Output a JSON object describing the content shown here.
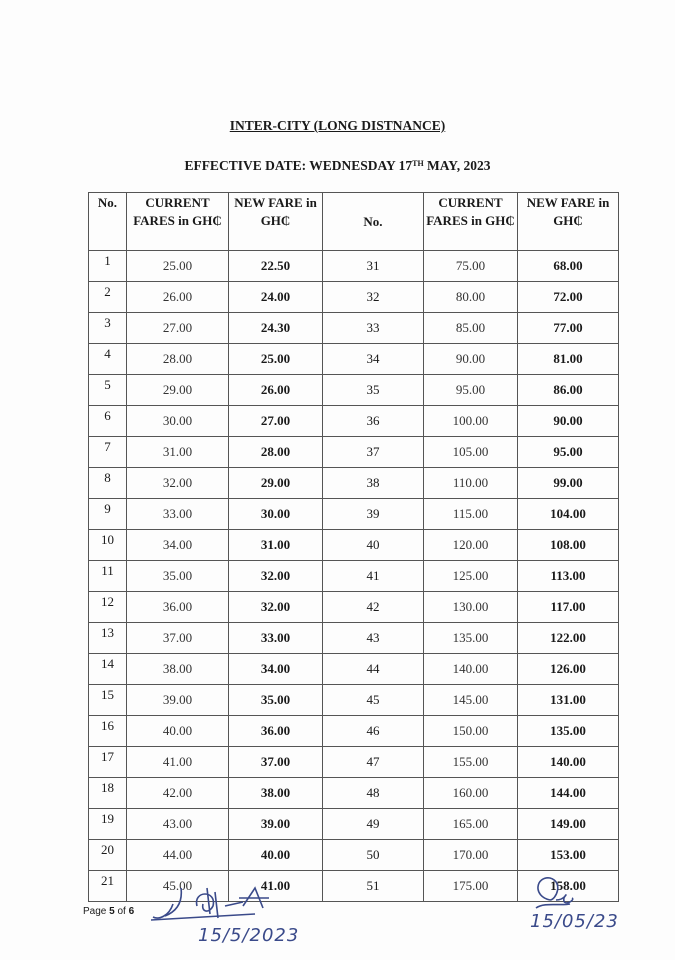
{
  "title": "INTER-CITY (LONG DISTNANCE)",
  "subtitle_prefix": "EFFECTIVE DATE: WEDNESDAY 17",
  "subtitle_sup": "TH",
  "subtitle_suffix": " MAY, 2023",
  "headers": [
    "No.",
    "CURRENT FARES in GH₵",
    "NEW FARE in GH₵",
    "No.",
    "CURRENT FARES in GH₵",
    "NEW FARE in GH₵"
  ],
  "rows": [
    [
      "1",
      "25.00",
      "22.50",
      "31",
      "75.00",
      "68.00"
    ],
    [
      "2",
      "26.00",
      "24.00",
      "32",
      "80.00",
      "72.00"
    ],
    [
      "3",
      "27.00",
      "24.30",
      "33",
      "85.00",
      "77.00"
    ],
    [
      "4",
      "28.00",
      "25.00",
      "34",
      "90.00",
      "81.00"
    ],
    [
      "5",
      "29.00",
      "26.00",
      "35",
      "95.00",
      "86.00"
    ],
    [
      "6",
      "30.00",
      "27.00",
      "36",
      "100.00",
      "90.00"
    ],
    [
      "7",
      "31.00",
      "28.00",
      "37",
      "105.00",
      "95.00"
    ],
    [
      "8",
      "32.00",
      "29.00",
      "38",
      "110.00",
      "99.00"
    ],
    [
      "9",
      "33.00",
      "30.00",
      "39",
      "115.00",
      "104.00"
    ],
    [
      "10",
      "34.00",
      "31.00",
      "40",
      "120.00",
      "108.00"
    ],
    [
      "11",
      "35.00",
      "32.00",
      "41",
      "125.00",
      "113.00"
    ],
    [
      "12",
      "36.00",
      "32.00",
      "42",
      "130.00",
      "117.00"
    ],
    [
      "13",
      "37.00",
      "33.00",
      "43",
      "135.00",
      "122.00"
    ],
    [
      "14",
      "38.00",
      "34.00",
      "44",
      "140.00",
      "126.00"
    ],
    [
      "15",
      "39.00",
      "35.00",
      "45",
      "145.00",
      "131.00"
    ],
    [
      "16",
      "40.00",
      "36.00",
      "46",
      "150.00",
      "135.00"
    ],
    [
      "17",
      "41.00",
      "37.00",
      "47",
      "155.00",
      "140.00"
    ],
    [
      "18",
      "42.00",
      "38.00",
      "48",
      "160.00",
      "144.00"
    ],
    [
      "19",
      "43.00",
      "39.00",
      "49",
      "165.00",
      "149.00"
    ],
    [
      "20",
      "44.00",
      "40.00",
      "50",
      "170.00",
      "153.00"
    ],
    [
      "21",
      "45.00",
      "41.00",
      "51",
      "175.00",
      "158.00"
    ]
  ],
  "footer": {
    "page_prefix": "Page ",
    "page_current": "5",
    "page_mid": " of ",
    "page_total": "6"
  },
  "signatures": [
    {
      "date": "15/5/2023"
    },
    {
      "date": "15/05/23"
    }
  ]
}
